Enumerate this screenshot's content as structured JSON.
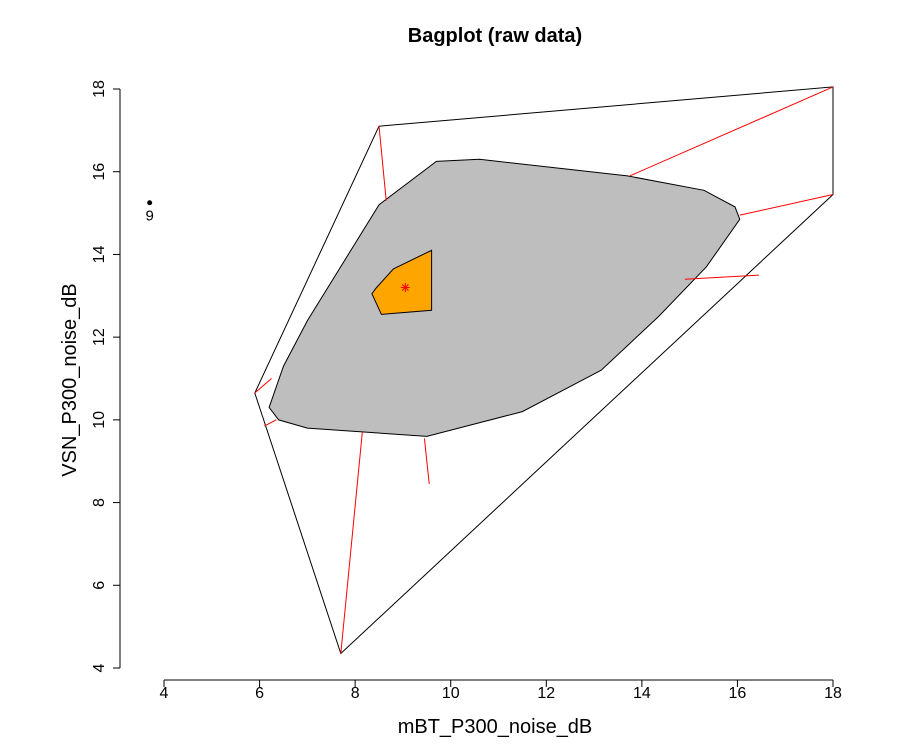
{
  "chart_data": {
    "type": "scatter",
    "subtype": "bagplot",
    "title": "Bagplot (raw data)",
    "xlabel": "mBT_P300_noise_dB",
    "ylabel": "VSN_P300_noise_dB",
    "xlim": [
      4,
      18
    ],
    "ylim": [
      4,
      18
    ],
    "x_ticks": [
      4,
      6,
      8,
      10,
      12,
      14,
      16,
      18
    ],
    "y_ticks": [
      4,
      6,
      8,
      10,
      12,
      14,
      16,
      18
    ],
    "grid": false,
    "legend": "none",
    "colors": {
      "bag": "#ffa500",
      "loop": "#bebebe",
      "fence_hull": "#000000",
      "whiskers": "#ff0000",
      "median": "#ff0000",
      "outlier": "#000000"
    },
    "outer_hull": [
      [
        7.7,
        4.35
      ],
      [
        5.9,
        10.65
      ],
      [
        8.5,
        17.1
      ],
      [
        18.0,
        18.05
      ],
      [
        18.0,
        15.45
      ]
    ],
    "loop": [
      [
        6.2,
        10.3
      ],
      [
        6.5,
        11.3
      ],
      [
        7.0,
        12.4
      ],
      [
        8.5,
        15.2
      ],
      [
        9.7,
        16.25
      ],
      [
        10.6,
        16.3
      ],
      [
        13.7,
        15.9
      ],
      [
        15.3,
        15.55
      ],
      [
        15.95,
        15.15
      ],
      [
        16.05,
        14.85
      ],
      [
        15.35,
        13.7
      ],
      [
        14.35,
        12.5
      ],
      [
        13.15,
        11.2
      ],
      [
        11.5,
        10.2
      ],
      [
        9.5,
        9.6
      ],
      [
        7.0,
        9.8
      ],
      [
        6.4,
        10.0
      ]
    ],
    "bag": [
      [
        8.45,
        13.2
      ],
      [
        8.8,
        13.65
      ],
      [
        9.6,
        14.1
      ],
      [
        9.6,
        12.65
      ],
      [
        8.55,
        12.55
      ],
      [
        8.35,
        13.05
      ]
    ],
    "median": [
      9.05,
      13.2
    ],
    "whiskers": [
      [
        [
          7.7,
          4.35
        ],
        [
          8.15,
          9.7
        ]
      ],
      [
        [
          9.55,
          8.45
        ],
        [
          9.45,
          9.55
        ]
      ],
      [
        [
          5.9,
          10.65
        ],
        [
          6.25,
          11.0
        ]
      ],
      [
        [
          6.1,
          9.85
        ],
        [
          6.35,
          10.0
        ]
      ],
      [
        [
          8.5,
          17.1
        ],
        [
          8.65,
          15.3
        ]
      ],
      [
        [
          18.0,
          18.05
        ],
        [
          13.75,
          15.9
        ]
      ],
      [
        [
          18.0,
          15.45
        ],
        [
          16.05,
          14.95
        ]
      ],
      [
        [
          16.45,
          13.5
        ],
        [
          14.9,
          13.4
        ]
      ]
    ],
    "outliers": [
      {
        "x": 3.7,
        "y": 15.25,
        "label": "9"
      }
    ]
  }
}
